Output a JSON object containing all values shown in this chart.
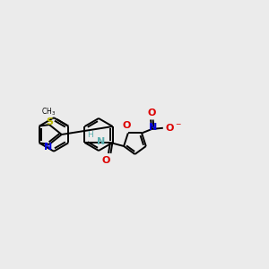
{
  "background_color": "#ebebeb",
  "bond_color": "#000000",
  "S_color": "#b8b800",
  "N_color": "#0000e0",
  "O_color": "#dd0000",
  "NH_color": "#5aadad",
  "bond_width": 1.4,
  "figsize": [
    3.0,
    3.0
  ],
  "dpi": 100,
  "xlim": [
    0,
    12
  ],
  "ylim": [
    2,
    9
  ]
}
